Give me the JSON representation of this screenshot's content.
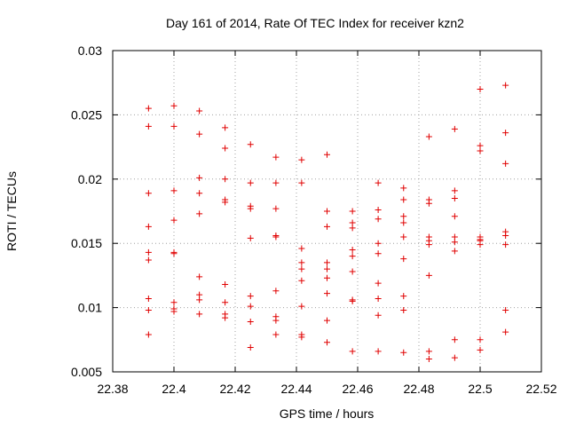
{
  "chart_data": {
    "type": "scatter",
    "title": "Day 161 of 2014, Rate Of TEC Index for receiver kzn2",
    "xlabel": "GPS time / hours",
    "ylabel": "ROTI / TECUs",
    "xlim": [
      22.38,
      22.52
    ],
    "ylim": [
      0.005,
      0.03
    ],
    "x_ticks": [
      22.38,
      22.4,
      22.42,
      22.44,
      22.46,
      22.48,
      22.5,
      22.52
    ],
    "x_tick_labels": [
      "22.38",
      "22.4",
      "22.42",
      "22.44",
      "22.46",
      "22.48",
      "22.5",
      "22.52"
    ],
    "y_ticks": [
      0.005,
      0.01,
      0.015,
      0.02,
      0.025,
      0.03
    ],
    "y_tick_labels": [
      "0.005",
      "0.01",
      "0.015",
      "0.02",
      "0.025",
      "0.03"
    ],
    "grid": true,
    "marker": "+",
    "marker_color": "#e00000",
    "series": [
      {
        "name": "ROTI",
        "points": [
          [
            22.3917,
            0.0255
          ],
          [
            22.3917,
            0.0241
          ],
          [
            22.3917,
            0.0189
          ],
          [
            22.3917,
            0.0163
          ],
          [
            22.3917,
            0.0143
          ],
          [
            22.3917,
            0.0137
          ],
          [
            22.3917,
            0.0107
          ],
          [
            22.3917,
            0.0098
          ],
          [
            22.3917,
            0.0079
          ],
          [
            22.4,
            0.0257
          ],
          [
            22.4,
            0.0241
          ],
          [
            22.4,
            0.0191
          ],
          [
            22.4,
            0.0168
          ],
          [
            22.4,
            0.0143
          ],
          [
            22.4,
            0.0142
          ],
          [
            22.4,
            0.0104
          ],
          [
            22.4,
            0.0099
          ],
          [
            22.4,
            0.0097
          ],
          [
            22.4083,
            0.0253
          ],
          [
            22.4083,
            0.0235
          ],
          [
            22.4083,
            0.0201
          ],
          [
            22.4083,
            0.0189
          ],
          [
            22.4083,
            0.0173
          ],
          [
            22.4083,
            0.0124
          ],
          [
            22.4083,
            0.011
          ],
          [
            22.4083,
            0.0106
          ],
          [
            22.4083,
            0.0095
          ],
          [
            22.4167,
            0.024
          ],
          [
            22.4167,
            0.0224
          ],
          [
            22.4167,
            0.02
          ],
          [
            22.4167,
            0.0184
          ],
          [
            22.4167,
            0.0182
          ],
          [
            22.4167,
            0.0118
          ],
          [
            22.4167,
            0.0104
          ],
          [
            22.4167,
            0.0095
          ],
          [
            22.4167,
            0.0092
          ],
          [
            22.425,
            0.0227
          ],
          [
            22.425,
            0.0197
          ],
          [
            22.425,
            0.0179
          ],
          [
            22.425,
            0.0177
          ],
          [
            22.425,
            0.0154
          ],
          [
            22.425,
            0.0109
          ],
          [
            22.425,
            0.0101
          ],
          [
            22.425,
            0.0089
          ],
          [
            22.425,
            0.0069
          ],
          [
            22.4333,
            0.0217
          ],
          [
            22.4333,
            0.0197
          ],
          [
            22.4333,
            0.0177
          ],
          [
            22.4333,
            0.0156
          ],
          [
            22.4333,
            0.0155
          ],
          [
            22.4333,
            0.0113
          ],
          [
            22.4333,
            0.0093
          ],
          [
            22.4333,
            0.009
          ],
          [
            22.4333,
            0.0079
          ],
          [
            22.4417,
            0.0215
          ],
          [
            22.4417,
            0.0197
          ],
          [
            22.4417,
            0.0146
          ],
          [
            22.4417,
            0.0135
          ],
          [
            22.4417,
            0.013
          ],
          [
            22.4417,
            0.0121
          ],
          [
            22.4417,
            0.0101
          ],
          [
            22.4417,
            0.0079
          ],
          [
            22.4417,
            0.0077
          ],
          [
            22.45,
            0.0219
          ],
          [
            22.45,
            0.0175
          ],
          [
            22.45,
            0.0163
          ],
          [
            22.45,
            0.0135
          ],
          [
            22.45,
            0.013
          ],
          [
            22.45,
            0.0123
          ],
          [
            22.45,
            0.0111
          ],
          [
            22.45,
            0.009
          ],
          [
            22.45,
            0.0073
          ],
          [
            22.4583,
            0.0175
          ],
          [
            22.4583,
            0.0166
          ],
          [
            22.4583,
            0.0162
          ],
          [
            22.4583,
            0.0145
          ],
          [
            22.4583,
            0.014
          ],
          [
            22.4583,
            0.0128
          ],
          [
            22.4583,
            0.0106
          ],
          [
            22.4583,
            0.0105
          ],
          [
            22.4583,
            0.0066
          ],
          [
            22.4667,
            0.0197
          ],
          [
            22.4667,
            0.0176
          ],
          [
            22.4667,
            0.0169
          ],
          [
            22.4667,
            0.015
          ],
          [
            22.4667,
            0.0142
          ],
          [
            22.4667,
            0.0119
          ],
          [
            22.4667,
            0.0107
          ],
          [
            22.4667,
            0.0094
          ],
          [
            22.4667,
            0.0066
          ],
          [
            22.475,
            0.0193
          ],
          [
            22.475,
            0.0184
          ],
          [
            22.475,
            0.0171
          ],
          [
            22.475,
            0.0166
          ],
          [
            22.475,
            0.0155
          ],
          [
            22.475,
            0.0138
          ],
          [
            22.475,
            0.0109
          ],
          [
            22.475,
            0.0098
          ],
          [
            22.475,
            0.0065
          ],
          [
            22.4833,
            0.0233
          ],
          [
            22.4833,
            0.0184
          ],
          [
            22.4833,
            0.0181
          ],
          [
            22.4833,
            0.0155
          ],
          [
            22.4833,
            0.0152
          ],
          [
            22.4833,
            0.0149
          ],
          [
            22.4833,
            0.0125
          ],
          [
            22.4833,
            0.0066
          ],
          [
            22.4833,
            0.006
          ],
          [
            22.4917,
            0.0239
          ],
          [
            22.4917,
            0.0191
          ],
          [
            22.4917,
            0.0185
          ],
          [
            22.4917,
            0.0171
          ],
          [
            22.4917,
            0.0155
          ],
          [
            22.4917,
            0.0151
          ],
          [
            22.4917,
            0.0144
          ],
          [
            22.4917,
            0.0075
          ],
          [
            22.4917,
            0.0061
          ],
          [
            22.5,
            0.027
          ],
          [
            22.5,
            0.0226
          ],
          [
            22.5,
            0.0222
          ],
          [
            22.5,
            0.0155
          ],
          [
            22.5,
            0.0153
          ],
          [
            22.5,
            0.0152
          ],
          [
            22.5,
            0.0149
          ],
          [
            22.5,
            0.0075
          ],
          [
            22.5,
            0.0067
          ],
          [
            22.5083,
            0.0273
          ],
          [
            22.5083,
            0.0236
          ],
          [
            22.5083,
            0.0212
          ],
          [
            22.5083,
            0.0159
          ],
          [
            22.5083,
            0.0156
          ],
          [
            22.5083,
            0.0149
          ],
          [
            22.5083,
            0.0098
          ],
          [
            22.5083,
            0.0081
          ]
        ]
      }
    ]
  }
}
